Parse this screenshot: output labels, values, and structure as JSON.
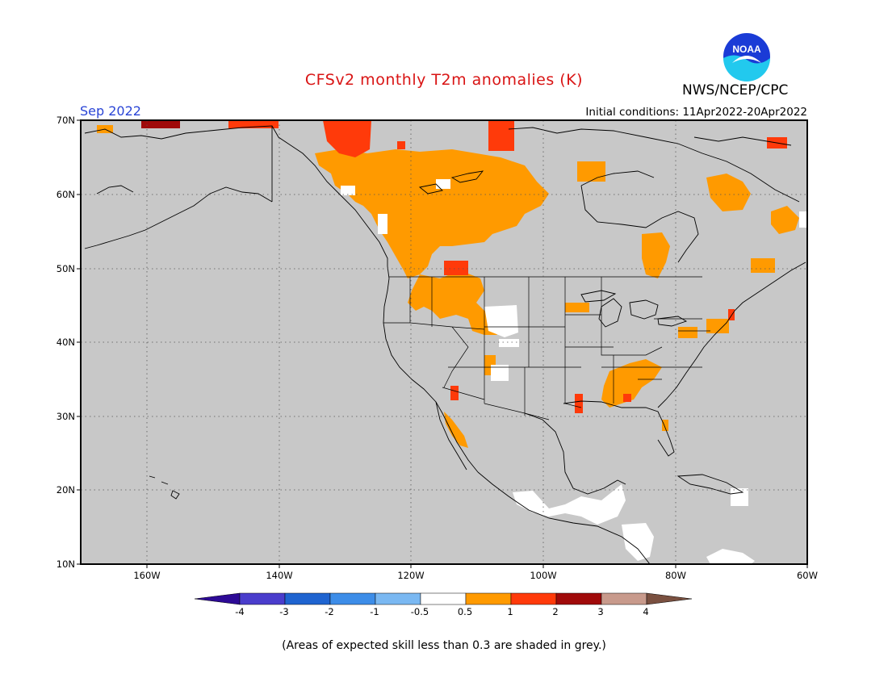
{
  "header": {
    "title": "CFSv2 monthly T2m anomalies (K)",
    "agency": "NWS/NCEP/CPC",
    "logo_text": "NOAA",
    "month": "Sep 2022",
    "initial_conditions": "Initial conditions: 11Apr2022-20Apr2022"
  },
  "map": {
    "lat_labels": [
      "70N",
      "60N",
      "50N",
      "40N",
      "30N",
      "20N",
      "10N"
    ],
    "lon_labels": [
      "160W",
      "140W",
      "120W",
      "100W",
      "80W",
      "60W"
    ],
    "background_color": "#c8c8c8"
  },
  "colorbar": {
    "labels": [
      "-4",
      "-3",
      "-2",
      "-1",
      "-0.5",
      "0.5",
      "1",
      "2",
      "3",
      "4"
    ],
    "colors": [
      "#2d0a96",
      "#4a3dcc",
      "#1f64d0",
      "#3d8de8",
      "#7ab8f2",
      "#ffffff",
      "#ff9a00",
      "#ff3a0a",
      "#a00a0a",
      "#c89a8c",
      "#7a5040"
    ]
  },
  "footnote": "(Areas of expected skill less than 0.3 are shaded in grey.)"
}
